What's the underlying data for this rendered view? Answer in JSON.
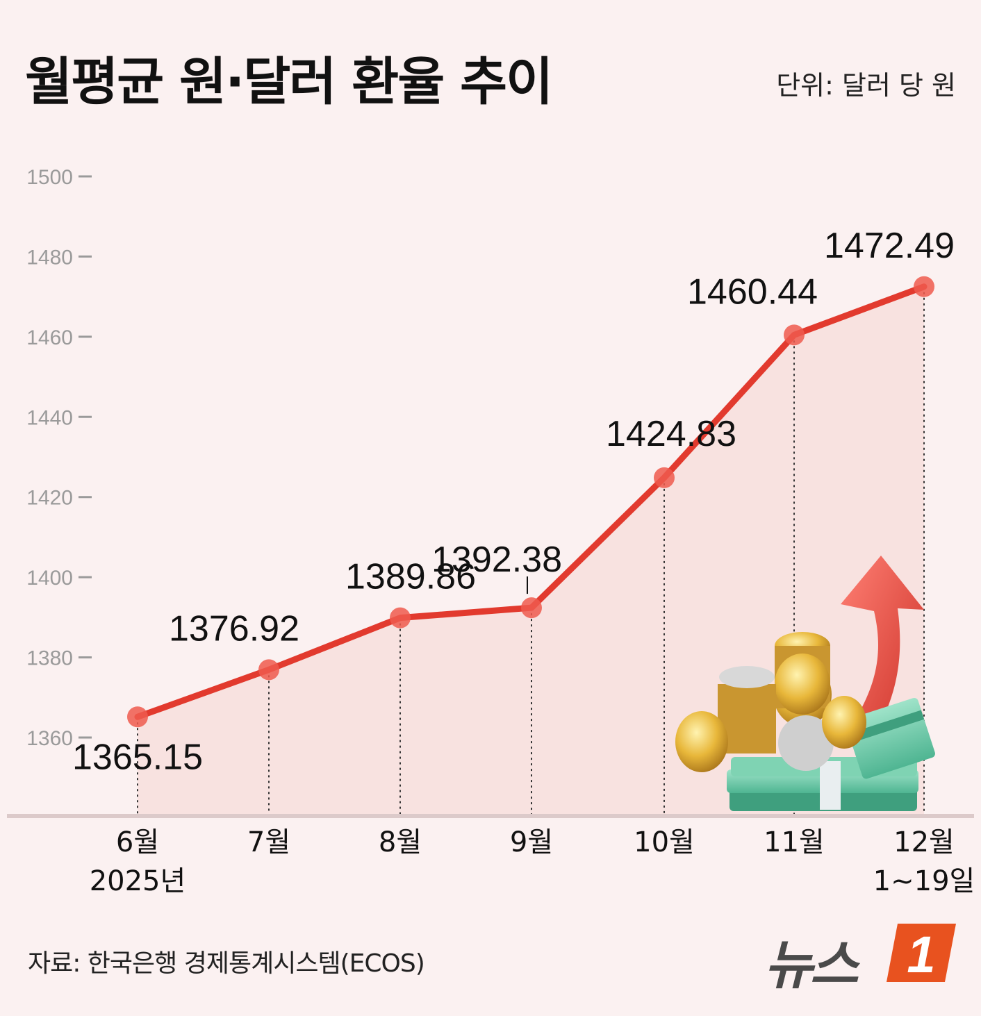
{
  "title": "월평균 원·달러 환율 추이",
  "unit": "단위: 달러 당 원",
  "source": "자료: 한국은행 경제통계시스템(ECOS)",
  "logo": {
    "text": "뉴스",
    "badge": "1"
  },
  "colors": {
    "line": "#e23a2e",
    "marker": "#ee5a4e",
    "fill": "#f7dcd9",
    "background": "#fbf1f1",
    "logo_badge": "#e8521f"
  },
  "chart_data": {
    "type": "line",
    "title": "월평균 원·달러 환율 추이",
    "ylim": [
      1360,
      1500
    ],
    "yticks": [
      1360,
      1380,
      1400,
      1420,
      1440,
      1460,
      1480,
      1500
    ],
    "ytick_labels": [
      "1360",
      "1380",
      "1400",
      "1420",
      "1440",
      "1460",
      "1480",
      "1500"
    ],
    "categories": [
      "6월\n2025년",
      "7월",
      "8월",
      "9월",
      "10월",
      "11월",
      "12월\n1~19일"
    ],
    "values": [
      1365.15,
      1376.92,
      1389.86,
      1392.38,
      1424.83,
      1460.44,
      1472.49
    ],
    "value_labels": [
      "1365.15",
      "1376.92",
      "1389.86",
      "1392.38",
      "1424.83",
      "1460.44",
      "1472.49"
    ],
    "grid": false,
    "legend": "none"
  }
}
